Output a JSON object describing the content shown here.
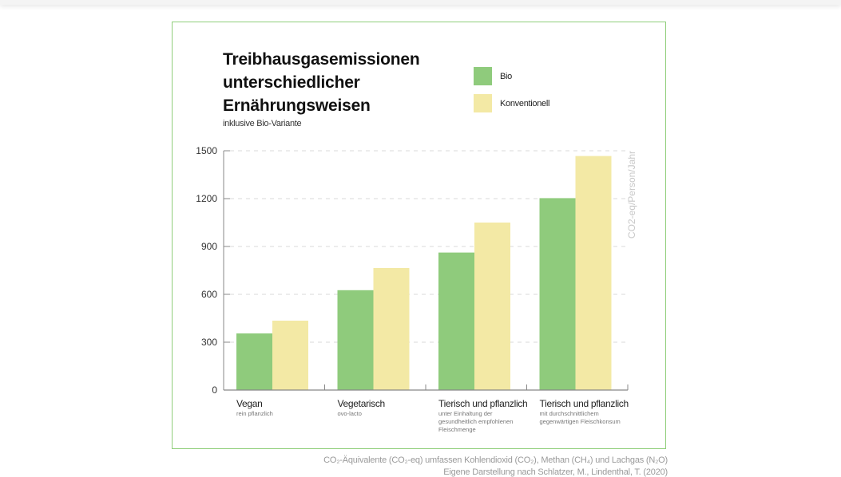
{
  "chart_data": {
    "type": "bar",
    "title": "Treibhausgasemissionen\nunterschiedlicher\nErnährungsweisen",
    "subtitle": "inklusive Bio-Variante",
    "ylabel": "CO2-eq/Person/Jahr",
    "xlabel": "",
    "ylim": [
      0,
      1500
    ],
    "yticks": [
      0,
      300,
      600,
      900,
      1200,
      1500
    ],
    "grid": true,
    "legend_position": "top-right",
    "categories": [
      {
        "label": "Vegan",
        "sublabel": "rein pflanzlich"
      },
      {
        "label": "Vegetarisch",
        "sublabel": "ovo-lacto"
      },
      {
        "label": "Tierisch und pflanzlich",
        "sublabel": "unter Einhaltung der\ngesundheitlich empfohlenen\nFleischmenge"
      },
      {
        "label": "Tierisch und pflanzlich",
        "sublabel": "mit durchschnittlichem\ngegenwärtigen Fleischkonsum"
      }
    ],
    "series": [
      {
        "name": "Bio",
        "color": "#8fcb7c",
        "values": [
          355,
          626,
          862,
          1203
        ]
      },
      {
        "name": "Konventionell",
        "color": "#f3e9a5",
        "values": [
          435,
          765,
          1050,
          1467
        ]
      }
    ]
  },
  "footnotes": {
    "line1": "CO₂-Äquivalente (CO₂-eq) umfassen Kohlendioxid (CO₂), Methan (CH₄) und Lachgas (N₂O)",
    "line2": "Eigene Darstellung nach Schlatzer, M., Lindenthal, T. (2020)"
  },
  "colors": {
    "frame_border": "#8fce7a",
    "axis": "#888888",
    "grid": "#d9d9d9",
    "tick_text": "#333333",
    "ylabel_text": "#c8c8c8"
  }
}
